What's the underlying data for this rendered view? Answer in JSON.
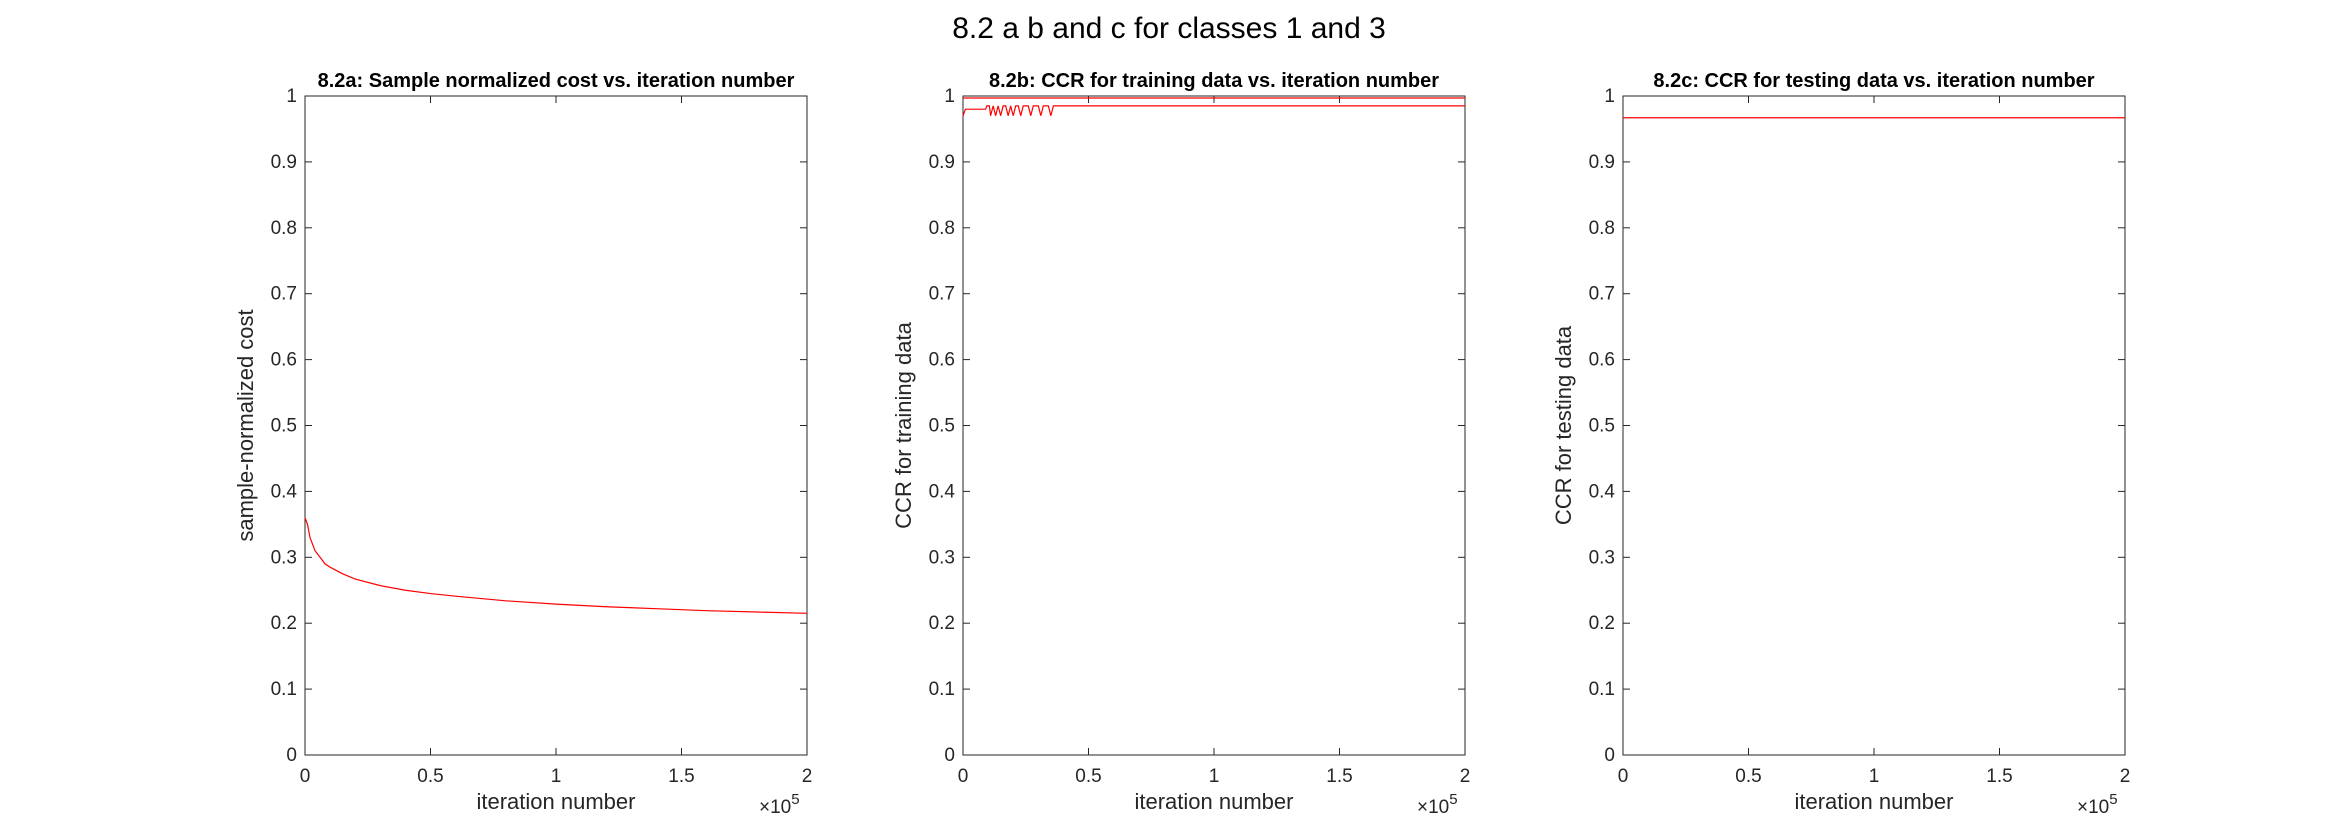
{
  "figure_title": "8.2 a b and c for classes 1 and 3",
  "colors": {
    "series": "#ff0000",
    "axis": "#262626",
    "background": "#ffffff"
  },
  "chart_data": [
    {
      "type": "line",
      "title": "8.2a: Sample normalized cost vs. iteration number",
      "xlabel": "iteration number",
      "ylabel": "sample-normalized cost",
      "xlim": [
        0,
        200000
      ],
      "ylim": [
        0,
        1
      ],
      "xticks": [
        0,
        50000,
        100000,
        150000,
        200000
      ],
      "xtick_labels": [
        "0",
        "0.5",
        "1",
        "1.5",
        "2"
      ],
      "x_exponent_label": "×10",
      "x_exponent_power": "5",
      "yticks": [
        0,
        0.1,
        0.2,
        0.3,
        0.4,
        0.5,
        0.6,
        0.7,
        0.8,
        0.9,
        1
      ],
      "ytick_labels": [
        "0",
        "0.1",
        "0.2",
        "0.3",
        "0.4",
        "0.5",
        "0.6",
        "0.7",
        "0.8",
        "0.9",
        "1"
      ],
      "grid": false,
      "series": [
        {
          "color": "#ff0000",
          "x": [
            0,
            1000,
            2000,
            4000,
            6000,
            8000,
            10000,
            15000,
            20000,
            30000,
            40000,
            50000,
            60000,
            80000,
            100000,
            120000,
            140000,
            160000,
            180000,
            200000
          ],
          "y": [
            0.36,
            0.35,
            0.33,
            0.31,
            0.3,
            0.29,
            0.285,
            0.275,
            0.267,
            0.257,
            0.25,
            0.245,
            0.241,
            0.234,
            0.229,
            0.225,
            0.222,
            0.219,
            0.217,
            0.215
          ]
        }
      ]
    },
    {
      "type": "line",
      "title": "8.2b: CCR for training data vs. iteration number",
      "xlabel": "iteration number",
      "ylabel": "CCR for training data",
      "xlim": [
        0,
        200000
      ],
      "ylim": [
        0,
        1
      ],
      "xticks": [
        0,
        50000,
        100000,
        150000,
        200000
      ],
      "xtick_labels": [
        "0",
        "0.5",
        "1",
        "1.5",
        "2"
      ],
      "x_exponent_label": "×10",
      "x_exponent_power": "5",
      "yticks": [
        0,
        0.1,
        0.2,
        0.3,
        0.4,
        0.5,
        0.6,
        0.7,
        0.8,
        0.9,
        1
      ],
      "ytick_labels": [
        "0",
        "0.1",
        "0.2",
        "0.3",
        "0.4",
        "0.5",
        "0.6",
        "0.7",
        "0.8",
        "0.9",
        "1"
      ],
      "grid": false,
      "series": [
        {
          "color": "#ff0000",
          "x": [
            0,
            1000,
            2000,
            9000,
            9500,
            10500,
            11000,
            12000,
            13000,
            14000,
            15000,
            16000,
            17000,
            18000,
            19000,
            20000,
            21000,
            22000,
            23000,
            24000,
            25000,
            26000,
            27000,
            28000,
            29000,
            30000,
            31000,
            32000,
            33000,
            34000,
            35000,
            36000,
            37000,
            38000,
            200000
          ],
          "y": [
            0.97,
            0.98,
            0.98,
            0.98,
            0.985,
            0.985,
            0.97,
            0.985,
            0.97,
            0.985,
            0.97,
            0.985,
            0.985,
            0.97,
            0.985,
            0.97,
            0.985,
            0.985,
            0.97,
            0.985,
            0.985,
            0.985,
            0.97,
            0.985,
            0.985,
            0.985,
            0.97,
            0.985,
            0.985,
            0.985,
            0.97,
            0.985,
            0.985,
            0.985,
            0.985
          ]
        },
        {
          "color": "#ff0000",
          "x": [
            0,
            200000
          ],
          "y": [
            0.997,
            0.997
          ]
        }
      ]
    },
    {
      "type": "line",
      "title": "8.2c: CCR for testing data vs. iteration number",
      "xlabel": "iteration number",
      "ylabel": "CCR for testing data",
      "xlim": [
        0,
        200000
      ],
      "ylim": [
        0,
        1
      ],
      "xticks": [
        0,
        50000,
        100000,
        150000,
        200000
      ],
      "xtick_labels": [
        "0",
        "0.5",
        "1",
        "1.5",
        "2"
      ],
      "x_exponent_label": "×10",
      "x_exponent_power": "5",
      "yticks": [
        0,
        0.1,
        0.2,
        0.3,
        0.4,
        0.5,
        0.6,
        0.7,
        0.8,
        0.9,
        1
      ],
      "ytick_labels": [
        "0",
        "0.1",
        "0.2",
        "0.3",
        "0.4",
        "0.5",
        "0.6",
        "0.7",
        "0.8",
        "0.9",
        "1"
      ],
      "grid": false,
      "series": [
        {
          "color": "#ff0000",
          "x": [
            0,
            200000
          ],
          "y": [
            0.967,
            0.967
          ]
        }
      ]
    }
  ]
}
